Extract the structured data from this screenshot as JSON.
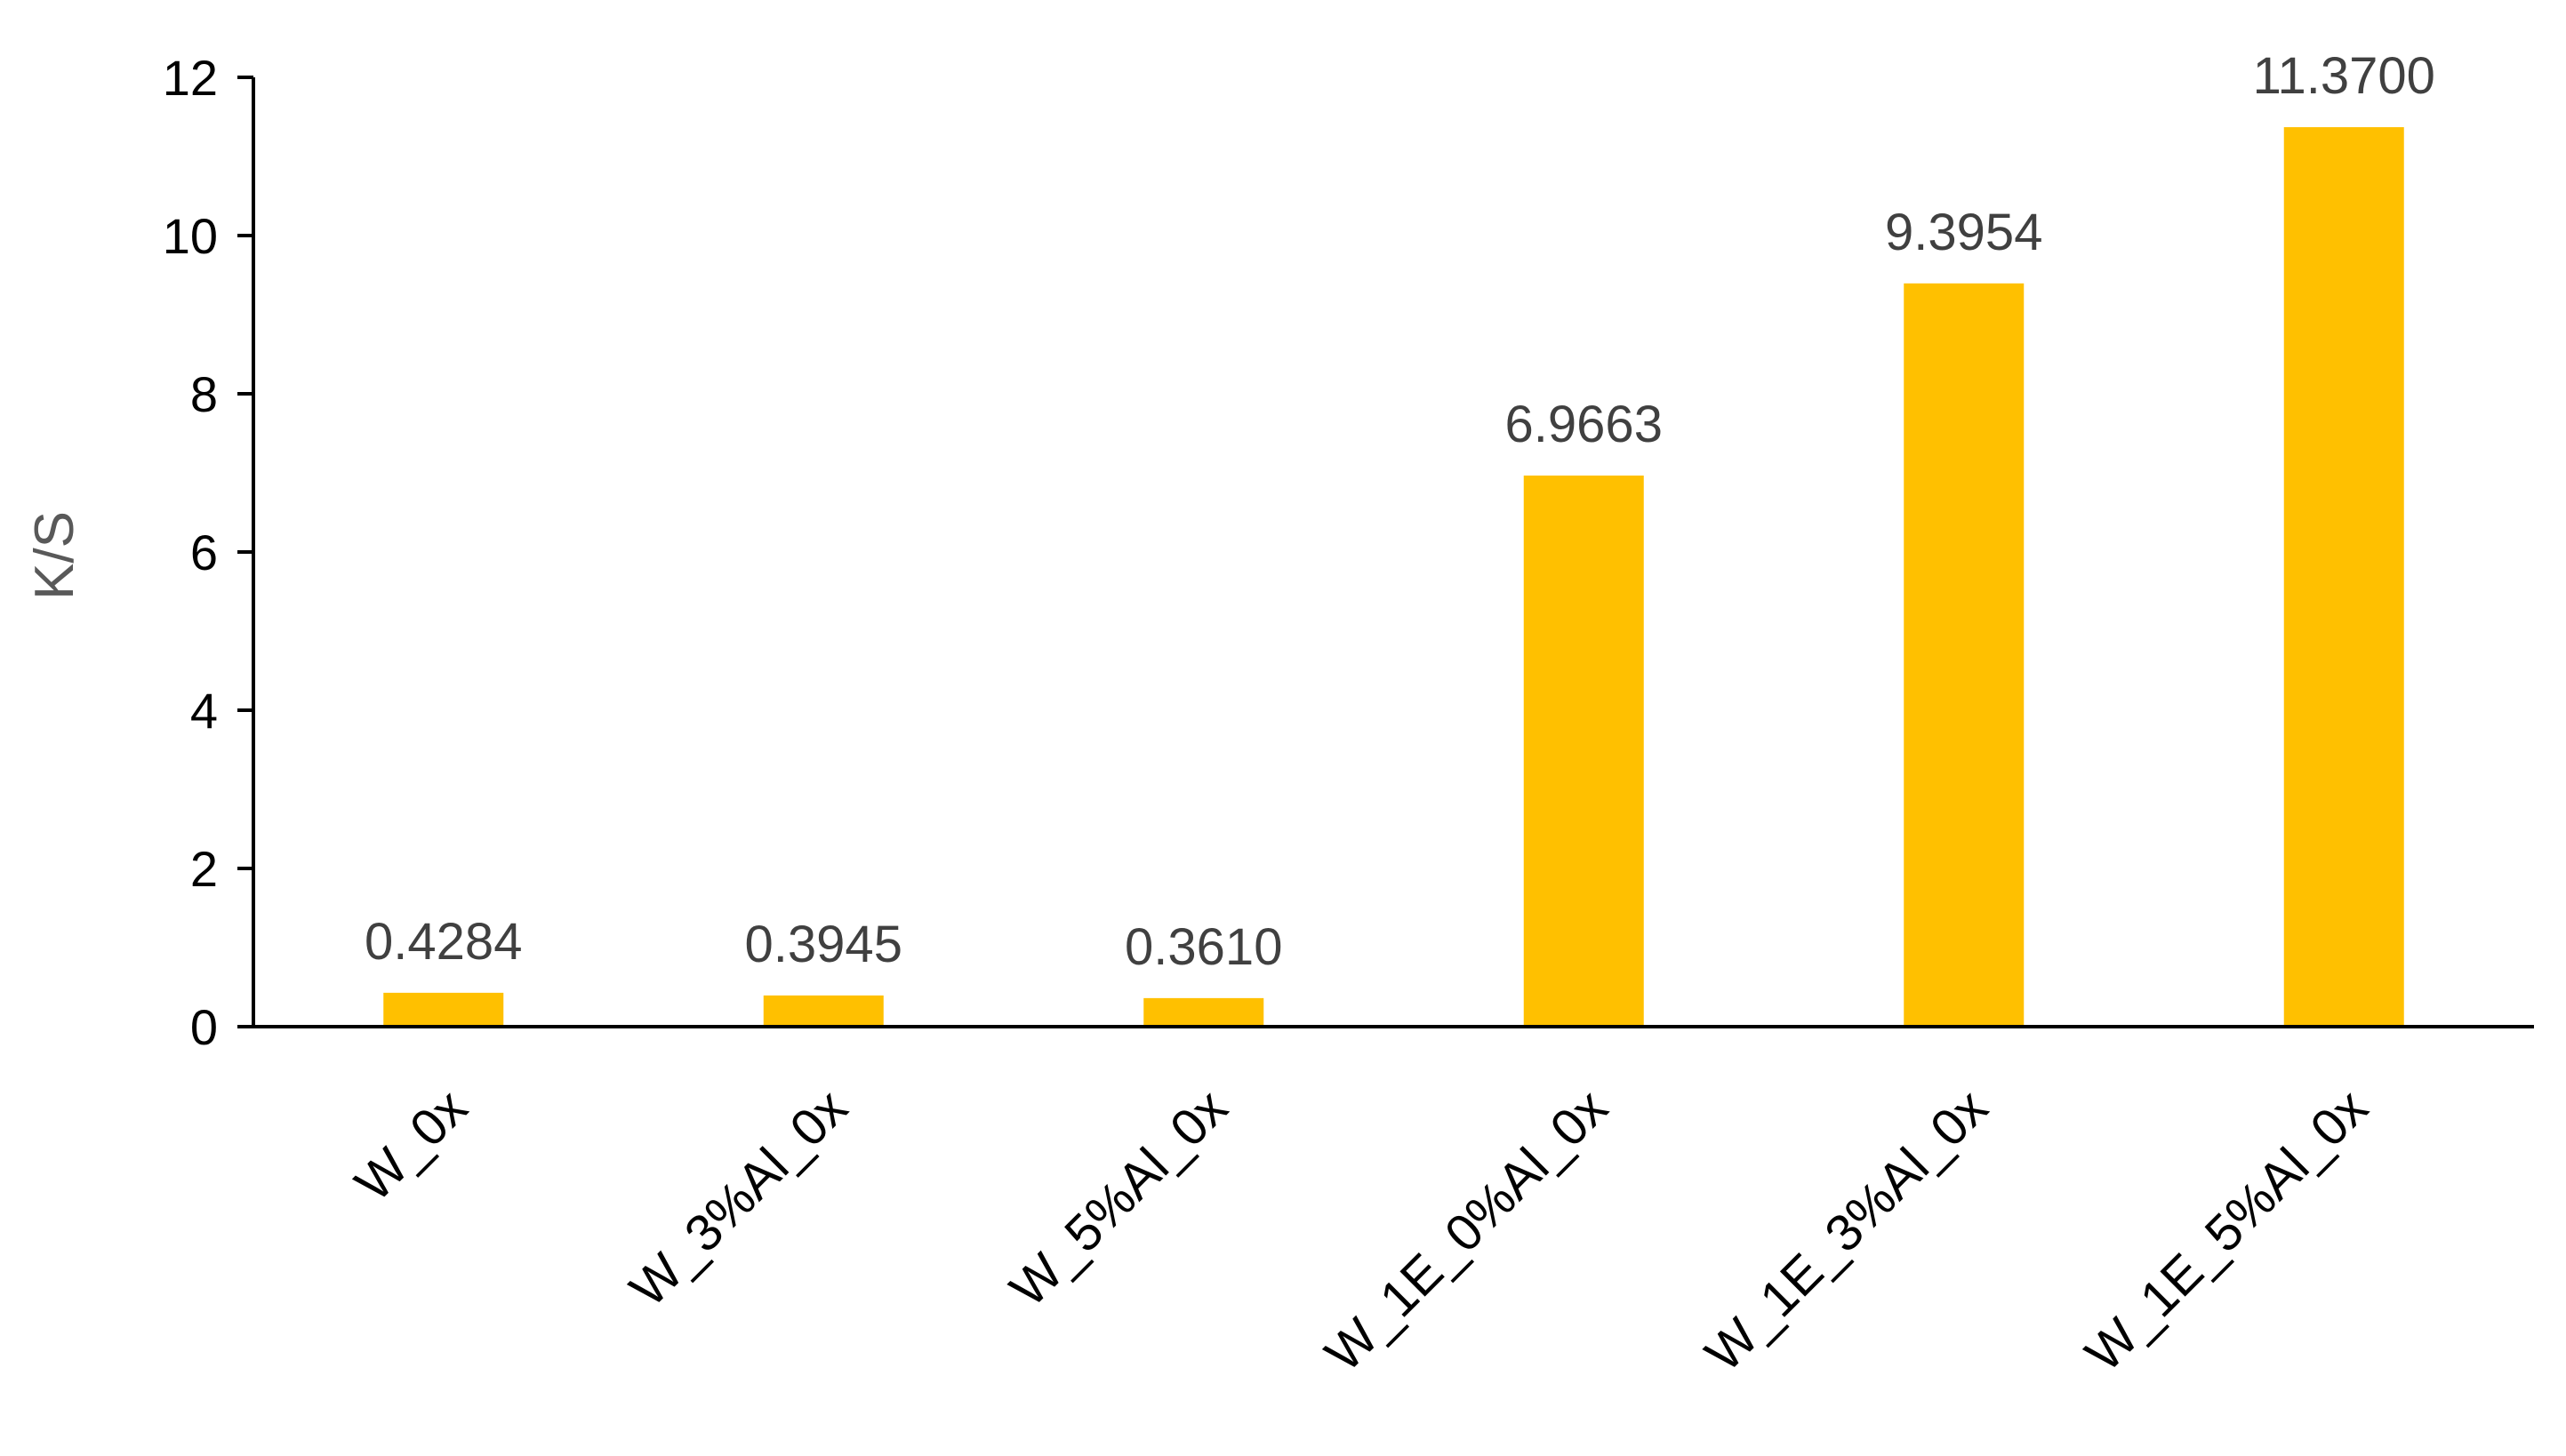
{
  "chart_data": {
    "type": "bar",
    "title": "",
    "xlabel": "",
    "ylabel": "K/S",
    "categories": [
      "W_0x",
      "W_3%Al_0x",
      "W_5%Al_0x",
      "W_1E_0%Al_0x",
      "W_1E_3%Al_0x",
      "W_1E_5%Al_0x"
    ],
    "values": [
      0.4284,
      0.3945,
      0.361,
      6.9663,
      9.3954,
      11.37
    ],
    "data_labels": [
      "0.4284",
      "0.3945",
      "0.3610",
      "6.9663",
      "9.3954",
      "11.3700"
    ],
    "ylim": [
      0,
      12
    ],
    "yticks": [
      0,
      2,
      4,
      6,
      8,
      10,
      12
    ],
    "grid": false,
    "legend": "none",
    "bar_color": "#FFC000",
    "axis_color": "#000000",
    "data_label_color": "#404040",
    "axis_title_color": "#595959"
  }
}
